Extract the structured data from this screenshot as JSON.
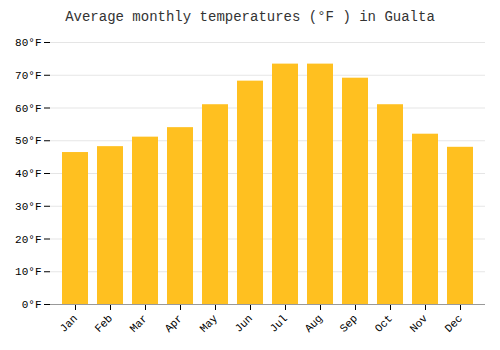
{
  "chart_data": {
    "type": "bar",
    "title": "Average monthly temperatures (°F ) in Gualta",
    "categories": [
      "Jan",
      "Feb",
      "Mar",
      "Apr",
      "May",
      "Jun",
      "Jul",
      "Aug",
      "Sep",
      "Oct",
      "Nov",
      "Dec"
    ],
    "values": [
      46.4,
      48.2,
      51.1,
      54.0,
      61.0,
      68.2,
      73.4,
      73.4,
      69.1,
      61.0,
      52.0,
      48.0
    ],
    "color": "#FFC020",
    "ylim": [
      0,
      80
    ],
    "yticks": [
      {
        "value": 0,
        "label": "0°F"
      },
      {
        "value": 10,
        "label": "10°F"
      },
      {
        "value": 20,
        "label": "20°F"
      },
      {
        "value": 30,
        "label": "30°F"
      },
      {
        "value": 40,
        "label": "40°F"
      },
      {
        "value": 50,
        "label": "50°F"
      },
      {
        "value": 60,
        "label": "60°F"
      },
      {
        "value": 70,
        "label": "70°F"
      },
      {
        "value": 80,
        "label": "80°F"
      }
    ],
    "grid": true
  }
}
